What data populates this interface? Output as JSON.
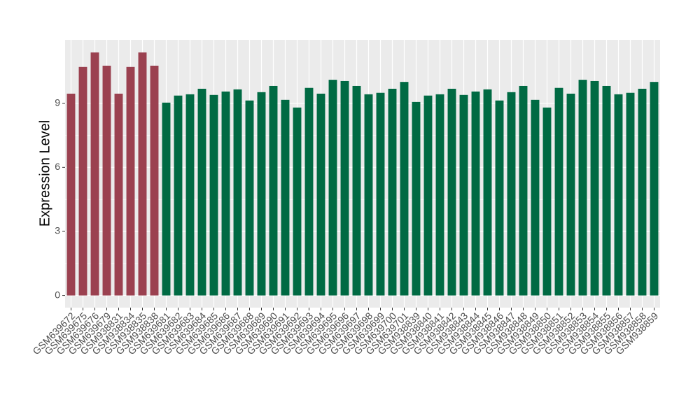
{
  "chart_data": {
    "type": "bar",
    "y_label": "Expression Level",
    "categories": [
      "GSM639672",
      "GSM639675",
      "GSM639676",
      "GSM639679",
      "GSM938831",
      "GSM938834",
      "GSM938835",
      "GSM938838",
      "GSM639681",
      "GSM639682",
      "GSM639683",
      "GSM639684",
      "GSM639685",
      "GSM639686",
      "GSM639687",
      "GSM639688",
      "GSM639689",
      "GSM639690",
      "GSM639691",
      "GSM639692",
      "GSM639693",
      "GSM639694",
      "GSM639695",
      "GSM639696",
      "GSM639697",
      "GSM639698",
      "GSM639699",
      "GSM639700",
      "GSM639701",
      "GSM938839",
      "GSM938840",
      "GSM938841",
      "GSM938842",
      "GSM938843",
      "GSM938844",
      "GSM938845",
      "GSM938846",
      "GSM938847",
      "GSM938848",
      "GSM938849",
      "GSM938850",
      "GSM938851",
      "GSM938852",
      "GSM938853",
      "GSM938854",
      "GSM938855",
      "GSM938856",
      "GSM938857",
      "GSM938858",
      "GSM938859"
    ],
    "values": [
      9.45,
      10.7,
      11.38,
      10.76,
      9.45,
      10.7,
      11.38,
      10.76,
      9.03,
      9.36,
      9.42,
      9.68,
      9.39,
      9.55,
      9.65,
      9.13,
      9.52,
      9.81,
      9.16,
      8.8,
      9.72,
      9.45,
      10.1,
      10.04,
      9.81,
      9.42,
      9.49,
      9.68,
      10.0,
      9.06,
      9.36,
      9.42,
      9.68,
      9.39,
      9.55,
      9.65,
      9.13,
      9.52,
      9.81,
      9.16,
      8.8,
      9.72,
      9.45,
      10.1,
      10.04,
      9.81,
      9.42,
      9.49,
      9.68,
      10.0
    ],
    "colors": [
      "#9b4150",
      "#9b4150",
      "#9b4150",
      "#9b4150",
      "#9b4150",
      "#9b4150",
      "#9b4150",
      "#9b4150",
      "#006a43",
      "#006a43",
      "#006a43",
      "#006a43",
      "#006a43",
      "#006a43",
      "#006a43",
      "#006a43",
      "#006a43",
      "#006a43",
      "#006a43",
      "#006a43",
      "#006a43",
      "#006a43",
      "#006a43",
      "#006a43",
      "#006a43",
      "#006a43",
      "#006a43",
      "#006a43",
      "#006a43",
      "#006a43",
      "#006a43",
      "#006a43",
      "#006a43",
      "#006a43",
      "#006a43",
      "#006a43",
      "#006a43",
      "#006a43",
      "#006a43",
      "#006a43",
      "#006a43",
      "#006a43",
      "#006a43",
      "#006a43",
      "#006a43",
      "#006a43",
      "#006a43",
      "#006a43",
      "#006a43",
      "#006a43"
    ],
    "ylim": [
      -0.57,
      11.97
    ],
    "yticks": [
      0,
      3,
      6,
      9
    ],
    "grid": true
  }
}
